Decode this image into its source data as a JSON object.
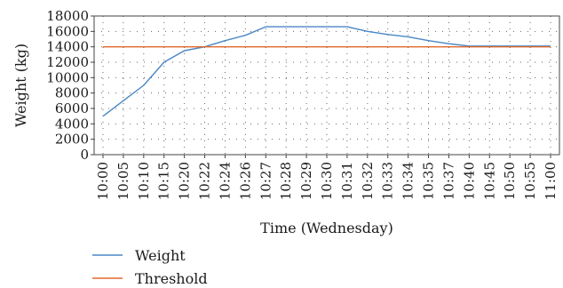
{
  "chart_data": {
    "type": "line",
    "xlabel": "Time (Wednesday)",
    "ylabel": "Weight (kg)",
    "ylim": [
      0,
      18000
    ],
    "yticks": [
      0,
      2000,
      4000,
      6000,
      8000,
      10000,
      12000,
      14000,
      16000,
      18000
    ],
    "grid": "dotted",
    "legend_position": "bottom-left",
    "categories": [
      "10:00",
      "10:05",
      "10:10",
      "10:15",
      "10:20",
      "10:22",
      "10:24",
      "10:26",
      "10:27",
      "10:28",
      "10:29",
      "10:30",
      "10:31",
      "10:32",
      "10:33",
      "10:34",
      "10:35",
      "10:37",
      "10:40",
      "10:45",
      "10:50",
      "10:55",
      "11:00"
    ],
    "series": [
      {
        "name": "Weight",
        "color": "#4a86c5",
        "values": [
          5000,
          7000,
          9000,
          12000,
          13500,
          14000,
          14800,
          15500,
          16600,
          16600,
          16600,
          16600,
          16600,
          16000,
          15600,
          15300,
          14800,
          14400,
          14100,
          14100,
          14100,
          14100,
          14100
        ]
      },
      {
        "name": "Threshold",
        "color": "#e0692c",
        "values": [
          14000,
          14000,
          14000,
          14000,
          14000,
          14000,
          14000,
          14000,
          14000,
          14000,
          14000,
          14000,
          14000,
          14000,
          14000,
          14000,
          14000,
          14000,
          14000,
          14000,
          14000,
          14000,
          14000
        ]
      }
    ]
  }
}
